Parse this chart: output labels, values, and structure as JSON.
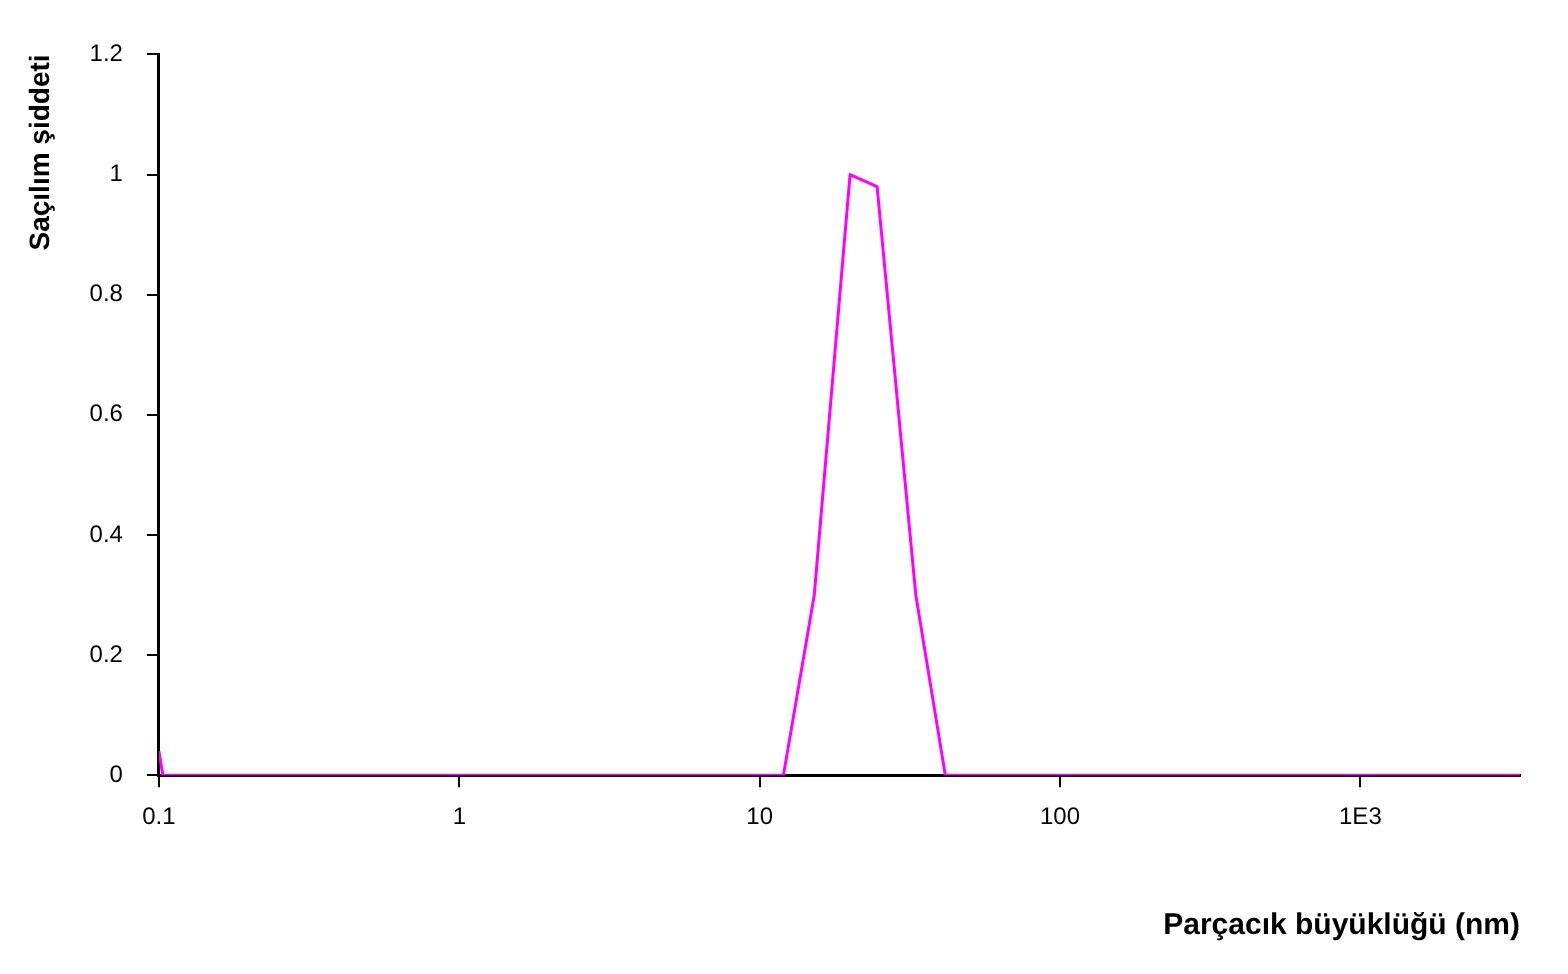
{
  "chart_data": {
    "type": "line",
    "xlabel": "Parçacık büyüklüğü (nm)",
    "ylabel": "Saçılım şiddeti",
    "log": "x",
    "x": [
      0.1,
      0.103,
      12,
      15.2,
      20,
      24.6,
      33.1,
      41.5,
      3400
    ],
    "series": [
      {
        "color": "#ff00ff",
        "values": [
          0.04,
          0,
          0,
          0.3,
          1,
          0.98,
          0.3,
          0,
          0
        ]
      }
    ],
    "xlim": [
      0.1,
      3400
    ],
    "xticks": [
      0.1,
      1,
      10,
      100,
      {
        "value": 1000,
        "label": "1E3"
      }
    ],
    "ylim": [
      0,
      1.2
    ],
    "yticks": [
      0,
      0.2,
      0.4,
      0.6,
      0.8,
      1,
      1.2
    ],
    "grid": false,
    "legend": false,
    "marker": "none",
    "line_style": "solid"
  }
}
